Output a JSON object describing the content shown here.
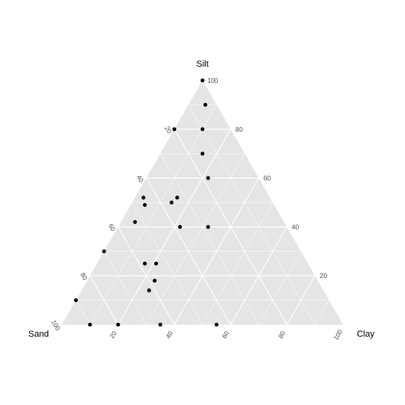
{
  "chart_data": {
    "type": "scatter",
    "subtype": "ternary",
    "title": "",
    "axes": {
      "top": "Silt",
      "left": "Sand",
      "right": "Clay"
    },
    "ticks": [
      20,
      40,
      60,
      80,
      100
    ],
    "range": [
      0,
      100
    ],
    "grid": true,
    "colors": {
      "panel": "#e5e5e5",
      "grid": "#ffffff",
      "point": "#000000",
      "tick_text": "#4d4d4d"
    },
    "points": [
      {
        "silt": 100,
        "clay": 0
      },
      {
        "silt": 90,
        "clay": 6
      },
      {
        "silt": 80,
        "clay": 0
      },
      {
        "silt": 80,
        "clay": 10
      },
      {
        "silt": 70,
        "clay": 15
      },
      {
        "silt": 60,
        "clay": 22
      },
      {
        "silt": 52,
        "clay": 3
      },
      {
        "silt": 49,
        "clay": 5
      },
      {
        "silt": 42,
        "clay": 5
      },
      {
        "silt": 52,
        "clay": 15
      },
      {
        "silt": 50,
        "clay": 14
      },
      {
        "silt": 40,
        "clay": 22
      },
      {
        "silt": 40,
        "clay": 32
      },
      {
        "silt": 30,
        "clay": 0
      },
      {
        "silt": 25,
        "clay": 17
      },
      {
        "silt": 25,
        "clay": 21
      },
      {
        "silt": 18,
        "clay": 24
      },
      {
        "silt": 14,
        "clay": 24
      },
      {
        "silt": 10,
        "clay": 0
      },
      {
        "silt": 0,
        "clay": 10
      },
      {
        "silt": 0,
        "clay": 20
      },
      {
        "silt": 0,
        "clay": 35
      },
      {
        "silt": 0,
        "clay": 55
      }
    ]
  }
}
